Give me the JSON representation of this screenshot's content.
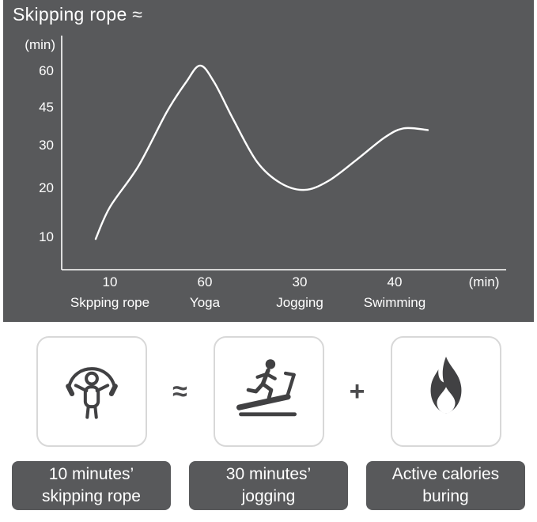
{
  "chart": {
    "title": "Skipping rope ≈",
    "y_unit": "(min)",
    "x_unit": "(min)",
    "y_ticks": [
      "10",
      "20",
      "30",
      "45",
      "60"
    ],
    "x_ticks": [
      "10",
      "60",
      "30",
      "40"
    ],
    "x_labels": [
      "Skpping rope",
      "Yoga",
      "Jogging",
      "Swimming"
    ]
  },
  "chart_data": {
    "type": "line",
    "title": "Skipping rope ≈",
    "xlabel": "(min)",
    "ylabel": "(min)",
    "categories": [
      "Skpping rope",
      "Yoga",
      "Jogging",
      "Swimming"
    ],
    "category_durations_min": [
      10,
      60,
      30,
      40
    ],
    "y_tick_values": [
      10,
      20,
      30,
      45,
      60
    ],
    "grid": false,
    "legend": false,
    "series_note": "equivalent minutes curve across activities; x in category index units (1=Skpping rope, 2=Yoga, 3=Jogging, 4=Swimming)",
    "points": [
      [
        0.85,
        9.5
      ],
      [
        1.0,
        16
      ],
      [
        1.3,
        25
      ],
      [
        1.6,
        43
      ],
      [
        1.8,
        55
      ],
      [
        1.95,
        62
      ],
      [
        2.1,
        55
      ],
      [
        2.3,
        40
      ],
      [
        2.55,
        26
      ],
      [
        2.8,
        21
      ],
      [
        3.05,
        19.5
      ],
      [
        3.3,
        21.5
      ],
      [
        3.6,
        26.5
      ],
      [
        3.9,
        33
      ],
      [
        4.1,
        36.5
      ],
      [
        4.35,
        35.8
      ]
    ]
  },
  "equivalence": {
    "approx_symbol": "≈",
    "plus_symbol": "+",
    "cards": [
      {
        "icon": "skipping-rope-icon",
        "label_line1": "10 minutes’",
        "label_line2": "skipping rope"
      },
      {
        "icon": "treadmill-icon",
        "label_line1": "30 minutes’",
        "label_line2": "jogging"
      },
      {
        "icon": "flame-icon",
        "label_line1": "Active calories",
        "label_line2": "buring"
      }
    ]
  },
  "colors": {
    "panel": "#58595b",
    "chart_line": "#ffffff",
    "chart_text": "#ffffff",
    "icon": "#414143",
    "card_border": "#d8d8d8",
    "label_box": "#58595b",
    "label_text": "#ffffff"
  }
}
